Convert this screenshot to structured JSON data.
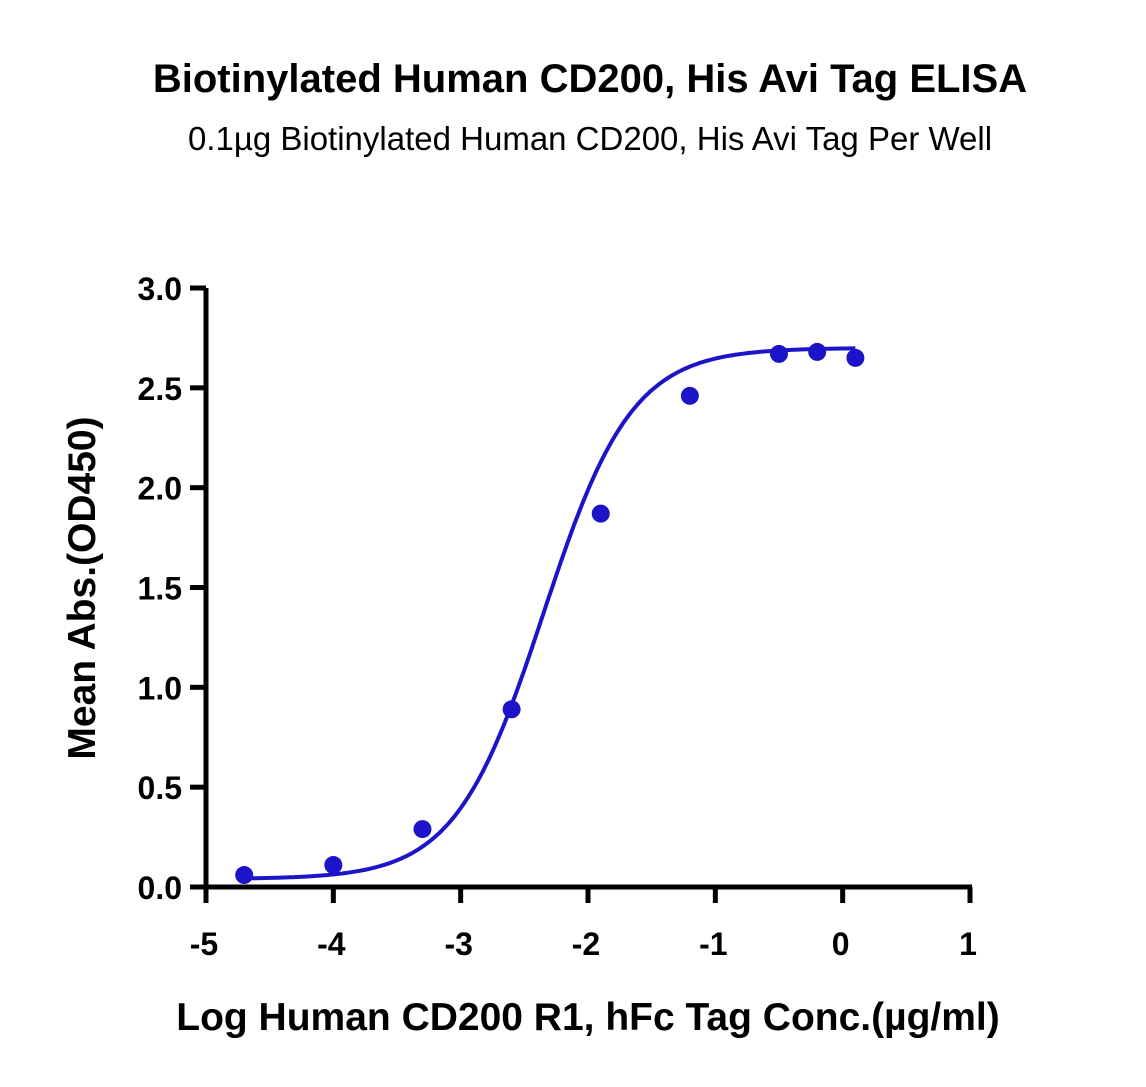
{
  "chart_data": {
    "type": "scatter",
    "title": "Biotinylated Human CD200, His Avi Tag ELISA",
    "subtitle": "0.1µg Biotinylated Human CD200, His Avi Tag Per Well",
    "xlabel": "Log Human CD200 R1, hFc Tag Conc.(µg/ml)",
    "ylabel": "Mean Abs.(OD450)",
    "xlim": [
      -5,
      1
    ],
    "ylim": [
      0,
      3.0
    ],
    "x_ticks": [
      -5,
      -4,
      -3,
      -2,
      -1,
      0,
      1
    ],
    "x_tick_labels": [
      "-5",
      "-4",
      "-3",
      "-2",
      "-1",
      "0",
      "1"
    ],
    "y_ticks": [
      0,
      0.5,
      1.0,
      1.5,
      2.0,
      2.5,
      3.0
    ],
    "y_tick_labels": [
      "0.0",
      "0.5",
      "1.0",
      "1.5",
      "2.0",
      "2.5",
      "3.0"
    ],
    "grid": false,
    "legend": "none",
    "color": "#1c14c8",
    "series": [
      {
        "x": [
          -4.7,
          -4.0,
          -3.3,
          -2.6,
          -1.9,
          -1.2,
          -0.5,
          -0.2,
          0.1
        ],
        "y": [
          0.06,
          0.11,
          0.29,
          0.89,
          1.87,
          2.46,
          2.67,
          2.68,
          2.65
        ]
      }
    ],
    "fit_curve": {
      "model": "4PL",
      "bottom": 0.04,
      "top": 2.7,
      "logEC50": -2.35,
      "hill": 1.25
    }
  }
}
